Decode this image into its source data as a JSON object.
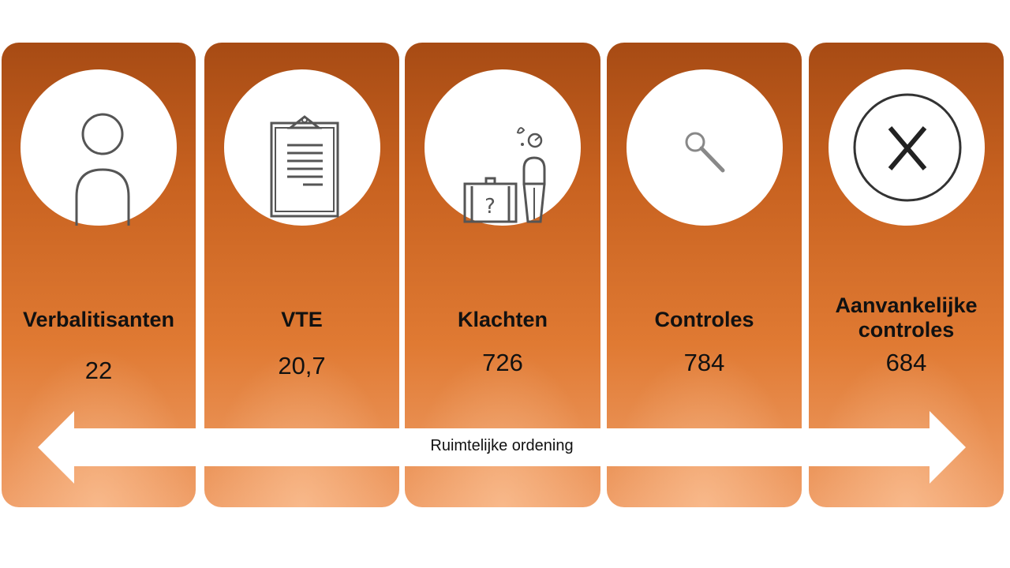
{
  "cards": [
    {
      "title": "Verbalitisanten",
      "value": "22",
      "icon": "person-icon"
    },
    {
      "title": "VTE",
      "value": "20,7",
      "icon": "clipboard-icon"
    },
    {
      "title": "Klachten",
      "value": "726",
      "icon": "complaint-person-suitcase-icon"
    },
    {
      "title": "Controles",
      "value": "784",
      "icon": "magnifier-icon"
    },
    {
      "title": "Aanvankelijke controles",
      "value": "684",
      "icon": "x-circle-icon"
    }
  ],
  "arrow": {
    "label": "Ruimtelijke ordening"
  },
  "colors": {
    "card_top": "#a74b14",
    "card_bottom": "#f0a06a",
    "text": "#111111"
  }
}
